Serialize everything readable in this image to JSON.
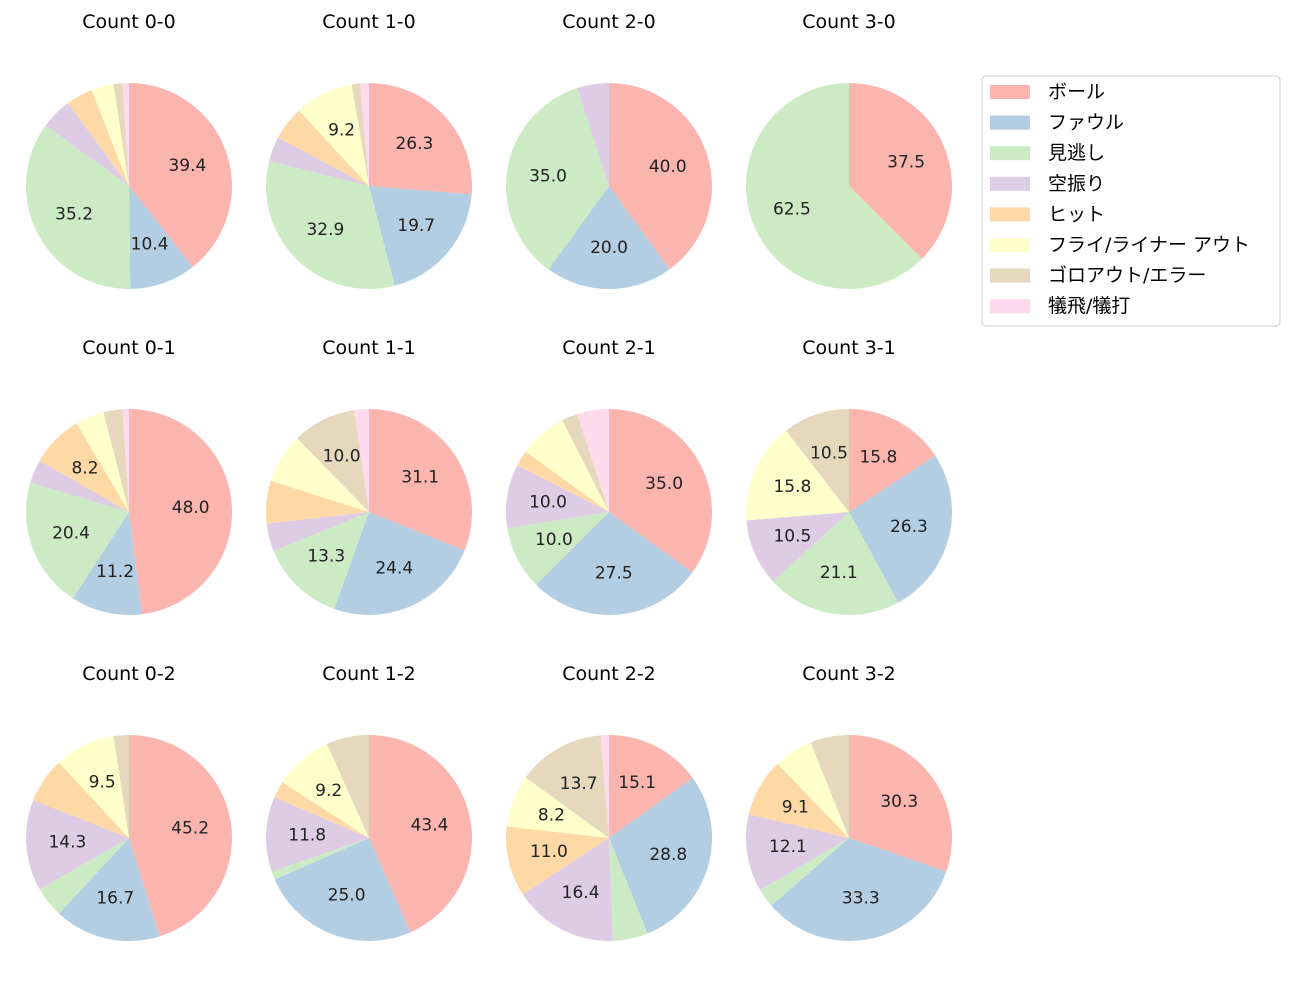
{
  "chart_data": {
    "type": "pie",
    "categories": [
      "ボール",
      "ファウル",
      "見逃し",
      "空振り",
      "ヒット",
      "フライ/ライナー アウト",
      "ゴロアウト/エラー",
      "犠飛/犠打"
    ],
    "colors": [
      "#fbb4ae",
      "#b3cde3",
      "#ccebc5",
      "#decbe4",
      "#fed9a6",
      "#ffffcc",
      "#e5d8bd",
      "#fddaec"
    ],
    "legend_position": "top-right",
    "pies": [
      {
        "title": "Count 0-0",
        "values": [
          39.4,
          10.4,
          35.2,
          4.9,
          4.2,
          3.5,
          1.4,
          1.0
        ],
        "labels": [
          "39.4",
          "10.4",
          "35.2",
          "",
          "",
          "",
          "",
          ""
        ]
      },
      {
        "title": "Count 1-0",
        "values": [
          26.3,
          19.7,
          32.9,
          3.9,
          5.3,
          9.2,
          1.3,
          1.4
        ],
        "labels": [
          "26.3",
          "19.7",
          "32.9",
          "",
          "",
          "9.2",
          "",
          ""
        ]
      },
      {
        "title": "Count 2-0",
        "values": [
          40.0,
          20.0,
          35.0,
          5.0,
          0,
          0,
          0,
          0
        ],
        "labels": [
          "40.0",
          "20.0",
          "35.0",
          "",
          "",
          "",
          "",
          ""
        ]
      },
      {
        "title": "Count 3-0",
        "values": [
          37.5,
          0,
          62.5,
          0,
          0,
          0,
          0,
          0
        ],
        "labels": [
          "37.5",
          "",
          "62.5",
          "",
          "",
          "",
          "",
          ""
        ]
      },
      {
        "title": "Count 0-1",
        "values": [
          48.0,
          11.2,
          20.4,
          3.7,
          8.2,
          4.5,
          3.0,
          1.0
        ],
        "labels": [
          "48.0",
          "11.2",
          "20.4",
          "",
          "8.2",
          "",
          "",
          ""
        ]
      },
      {
        "title": "Count 1-1",
        "values": [
          31.1,
          24.4,
          13.3,
          4.4,
          6.7,
          7.8,
          10.0,
          2.3
        ],
        "labels": [
          "31.1",
          "24.4",
          "13.3",
          "",
          "",
          "",
          "10.0",
          ""
        ]
      },
      {
        "title": "Count 2-1",
        "values": [
          35.0,
          27.5,
          10.0,
          10.0,
          2.5,
          7.5,
          2.5,
          5.0
        ],
        "labels": [
          "35.0",
          "27.5",
          "10.0",
          "10.0",
          "",
          "",
          "",
          ""
        ]
      },
      {
        "title": "Count 3-1",
        "values": [
          15.8,
          26.3,
          21.1,
          10.5,
          0,
          15.8,
          10.5,
          0
        ],
        "labels": [
          "15.8",
          "26.3",
          "21.1",
          "10.5",
          "",
          "15.8",
          "10.5",
          ""
        ]
      },
      {
        "title": "Count 0-2",
        "values": [
          45.2,
          16.7,
          4.8,
          14.3,
          7.1,
          9.5,
          2.4,
          0
        ],
        "labels": [
          "45.2",
          "16.7",
          "",
          "14.3",
          "",
          "9.5",
          "",
          ""
        ]
      },
      {
        "title": "Count 1-2",
        "values": [
          43.4,
          25.0,
          1.3,
          11.8,
          2.6,
          9.2,
          6.7,
          0
        ],
        "labels": [
          "43.4",
          "25.0",
          "",
          "11.8",
          "",
          "9.2",
          "",
          ""
        ]
      },
      {
        "title": "Count 2-2",
        "values": [
          15.1,
          28.8,
          5.5,
          16.4,
          11.0,
          8.2,
          13.7,
          1.3
        ],
        "labels": [
          "15.1",
          "28.8",
          "",
          "16.4",
          "11.0",
          "8.2",
          "13.7",
          ""
        ]
      },
      {
        "title": "Count 3-2",
        "values": [
          30.3,
          33.3,
          3.0,
          12.1,
          9.1,
          6.1,
          6.1,
          0
        ],
        "labels": [
          "30.3",
          "33.3",
          "",
          "12.1",
          "9.1",
          "",
          "",
          ""
        ]
      }
    ]
  }
}
